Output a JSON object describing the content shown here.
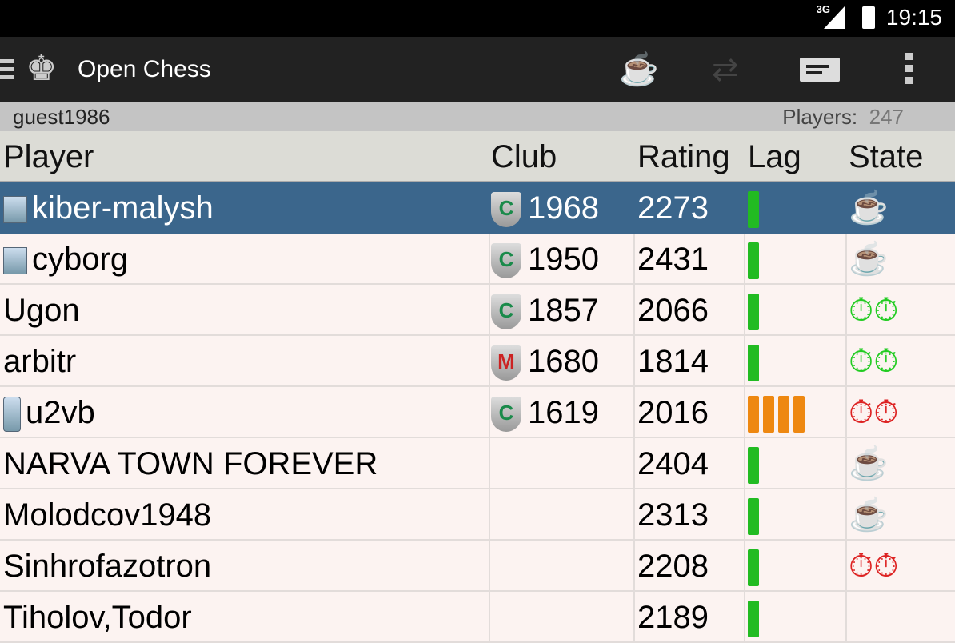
{
  "status": {
    "network": "3G",
    "time": "19:15"
  },
  "toolbar": {
    "title": "Open Chess",
    "icons": [
      "menu-icon",
      "king-logo-icon",
      "tea-cup-icon",
      "swap-arrows-icon",
      "message-icon",
      "overflow-menu-icon"
    ]
  },
  "subheader": {
    "user": "guest1986",
    "players_label": "Players:",
    "players_count": "247"
  },
  "table": {
    "headers": [
      "Player",
      "Club",
      "Rating",
      "Lag",
      "State"
    ],
    "rows": [
      {
        "player": "kiber-malysh",
        "device": "computer",
        "club_badge": "C",
        "club": "1968",
        "rating": "2273",
        "lag": 1,
        "lag_color": "#22bb22",
        "state": "red-cup",
        "selected": true
      },
      {
        "player": "cyborg",
        "device": "computer",
        "club_badge": "C",
        "club": "1950",
        "rating": "2431",
        "lag": 1,
        "lag_color": "#22bb22",
        "state": "red-cup"
      },
      {
        "player": "Ugon",
        "device": "",
        "club_badge": "C",
        "club": "1857",
        "rating": "2066",
        "lag": 1,
        "lag_color": "#22bb22",
        "state": "green-clock"
      },
      {
        "player": "arbitr",
        "device": "",
        "club_badge": "M",
        "club": "1680",
        "rating": "1814",
        "lag": 1,
        "lag_color": "#22bb22",
        "state": "green-clock"
      },
      {
        "player": "u2vb",
        "device": "mobile",
        "club_badge": "C",
        "club": "1619",
        "rating": "2016",
        "lag": 4,
        "lag_color": "#ee8811",
        "state": "red-clock"
      },
      {
        "player": "NARVA TOWN FOREVER",
        "device": "",
        "club_badge": "",
        "club": "",
        "rating": "2404",
        "lag": 1,
        "lag_color": "#22bb22",
        "state": "blue-cup"
      },
      {
        "player": "Molodcov1948",
        "device": "",
        "club_badge": "",
        "club": "",
        "rating": "2313",
        "lag": 1,
        "lag_color": "#22bb22",
        "state": "blue-cup"
      },
      {
        "player": "Sinhrofazotron",
        "device": "",
        "club_badge": "",
        "club": "",
        "rating": "2208",
        "lag": 1,
        "lag_color": "#22bb22",
        "state": "red-clock"
      },
      {
        "player": "Tiholov,Todor",
        "device": "",
        "club_badge": "",
        "club": "",
        "rating": "2189",
        "lag": 1,
        "lag_color": "#22bb22",
        "state": ""
      }
    ]
  }
}
